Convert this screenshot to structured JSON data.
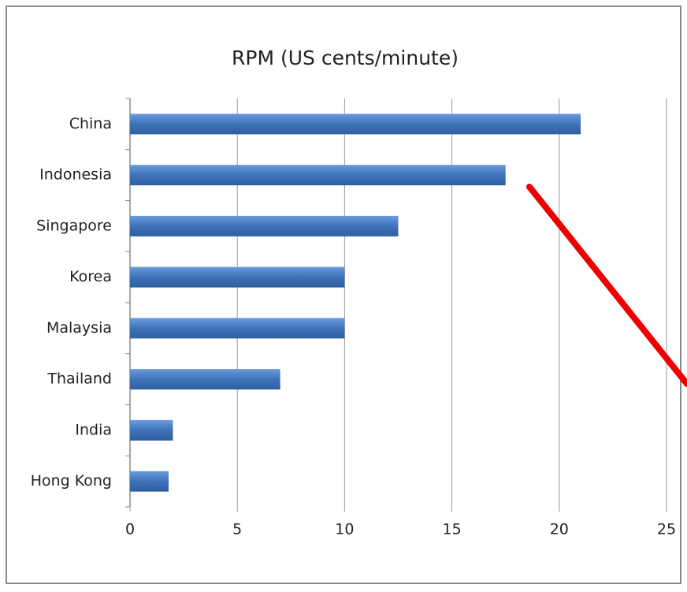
{
  "chart_data": {
    "type": "bar",
    "orientation": "horizontal",
    "title": "RPM (US cents/minute)",
    "categories": [
      "China",
      "Indonesia",
      "Singapore",
      "Korea",
      "Malaysia",
      "Thailand",
      "India",
      "Hong Kong"
    ],
    "values": [
      21,
      17.5,
      12.5,
      10,
      10,
      7,
      2,
      1.8
    ],
    "color": "#4a7ebb",
    "xlim": [
      0,
      25
    ],
    "xticks": [
      0,
      5,
      10,
      15,
      20,
      25
    ],
    "grid": true
  }
}
